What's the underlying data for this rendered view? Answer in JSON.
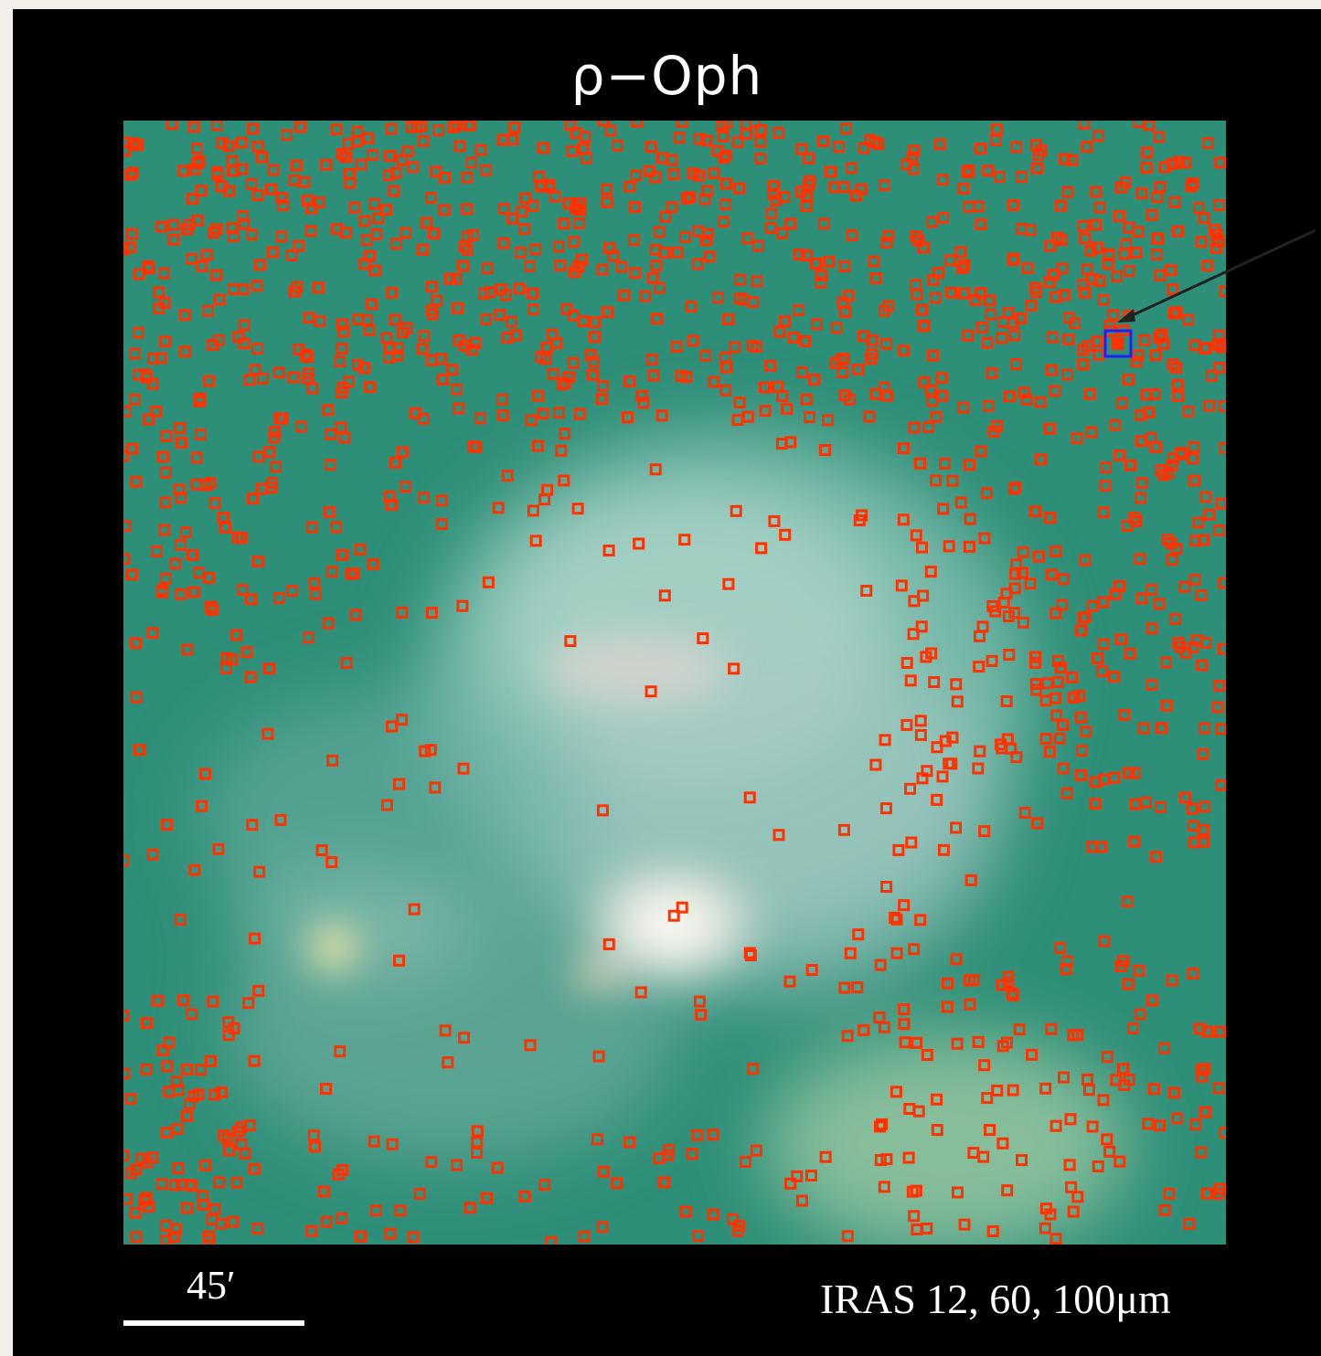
{
  "figure": {
    "title": "ρ−Oph",
    "scale_bar_label": "45′",
    "bands_label": "IRAS 12, 60, 100μm"
  },
  "colors": {
    "frame": "#000000",
    "sky_base": "#2e8f78",
    "source_markers": "#ff3300",
    "highlight_marker": "#2020ff",
    "arrow": "#222222"
  },
  "image_content": {
    "marker_shape": "small-square",
    "highlighted_source": "blue-square-with-arrow"
  }
}
